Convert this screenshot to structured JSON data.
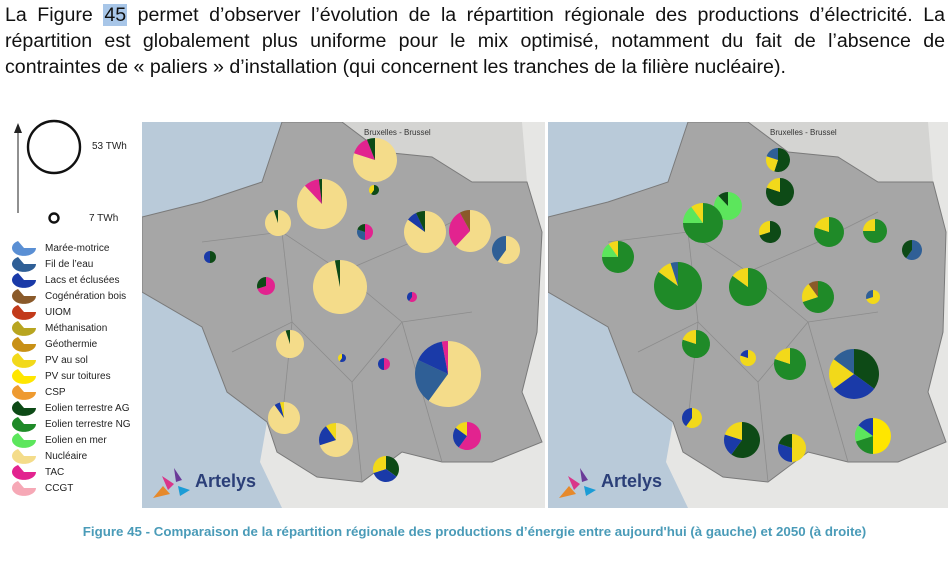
{
  "paragraph": {
    "before": "La Figure ",
    "highlight": "45",
    "after": " permet d’observer l’évolution de la répartition régionale des productions d’électricité. La répartition est globalement plus uniforme pour le mix optimisé, notamment du fait de l’absence de contraintes de « paliers » d’installation (qui concernent les tranches de la filière nucléaire)."
  },
  "size_legend": {
    "large": "53 TWh",
    "small": "7 TWh"
  },
  "legend": [
    {
      "label": "Marée-motrice",
      "color": "#5a8fd4"
    },
    {
      "label": "Fil de l’eau",
      "color": "#2f5f96"
    },
    {
      "label": "Lacs et éclusées",
      "color": "#1a3aa8"
    },
    {
      "label": "Cogénération bois",
      "color": "#8a5a2a"
    },
    {
      "label": "UIOM",
      "color": "#c23a1a"
    },
    {
      "label": "Méthanisation",
      "color": "#b8a520"
    },
    {
      "label": "Géothermie",
      "color": "#c89016"
    },
    {
      "label": "PV au sol",
      "color": "#f2d91a"
    },
    {
      "label": "PV sur toitures",
      "color": "#ffe600"
    },
    {
      "label": "CSP",
      "color": "#ee9a30"
    },
    {
      "label": "Eolien terrestre AG",
      "color": "#0d4a16"
    },
    {
      "label": "Eolien terrestre NG",
      "color": "#1f8a28"
    },
    {
      "label": "Eolien en mer",
      "color": "#5ce65c"
    },
    {
      "label": "Nucléaire",
      "color": "#f4dc8a"
    },
    {
      "label": "TAC",
      "color": "#e2238f"
    },
    {
      "label": "CCGT",
      "color": "#f6a8b6"
    }
  ],
  "map_labels": {
    "belgium": "Bruxelles - Brussel",
    "brand": "Artelys"
  },
  "caption": "Figure 45 - Comparaison de la répartition régionale des productions d’énergie entre aujourd'hui (à gauche) et 2050 (à droite)"
}
